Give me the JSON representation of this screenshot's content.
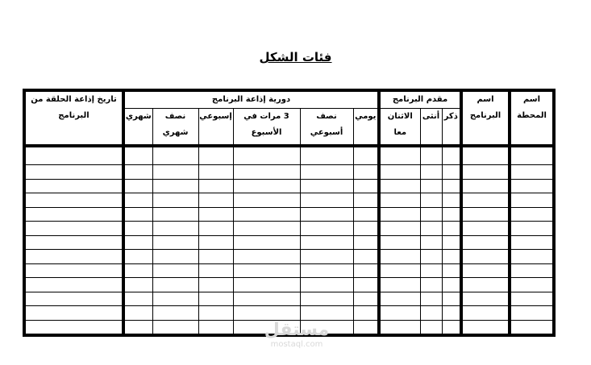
{
  "title": "فئات الشكل",
  "table": {
    "headers": {
      "station_name": "اسم المحطة",
      "program_name": "اسم البرنامج",
      "presenter_group": "مقدم البرنامج",
      "presenter": [
        "ذكر",
        "أنثى",
        "الاثنان معا"
      ],
      "frequency_group": "دورية إذاعة البرنامج",
      "frequency": [
        "يومي",
        "نصف أسبوعي",
        "3 مرات في الأسبوع",
        "إسبوعي",
        "نصف شهري",
        "شهري"
      ],
      "episode_date": "تاريخ إذاعة الحلقة من البرنامج"
    },
    "empty_rows": 13
  },
  "watermark": {
    "arabic": "مستقل",
    "latin": "mostaql.com"
  }
}
